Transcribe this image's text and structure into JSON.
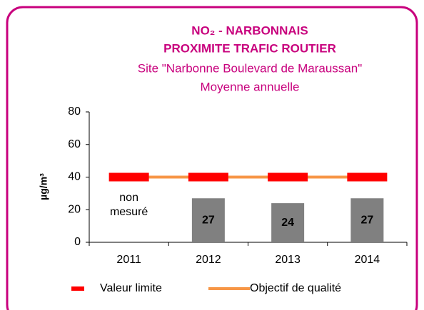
{
  "chart_data": {
    "type": "bar",
    "title": "NO₂ - NARBONNAIS",
    "subtitle": "PROXIMITE TRAFIC ROUTIER",
    "site": "Site \"Narbonne Boulevard de Maraussan\"",
    "period": "Moyenne annuelle",
    "y_label": "µg/m³",
    "categories": [
      "2011",
      "2012",
      "2013",
      "2014"
    ],
    "values": [
      null,
      27,
      24,
      27
    ],
    "color": "#808080",
    "annotation": "non mesuré",
    "series": [
      {
        "name": "Valeur limite",
        "color": "#ff0000",
        "mark": "dash",
        "values": [
          40,
          40,
          40,
          40
        ]
      },
      {
        "name": "Objectif de qualité",
        "color": "#f79646",
        "mark": "line",
        "values": [
          40,
          40,
          40,
          40
        ]
      }
    ],
    "ylim": [
      0,
      80
    ],
    "yticks": [
      0,
      20,
      40,
      60,
      80
    ],
    "grid": false,
    "legend": "bottom"
  }
}
